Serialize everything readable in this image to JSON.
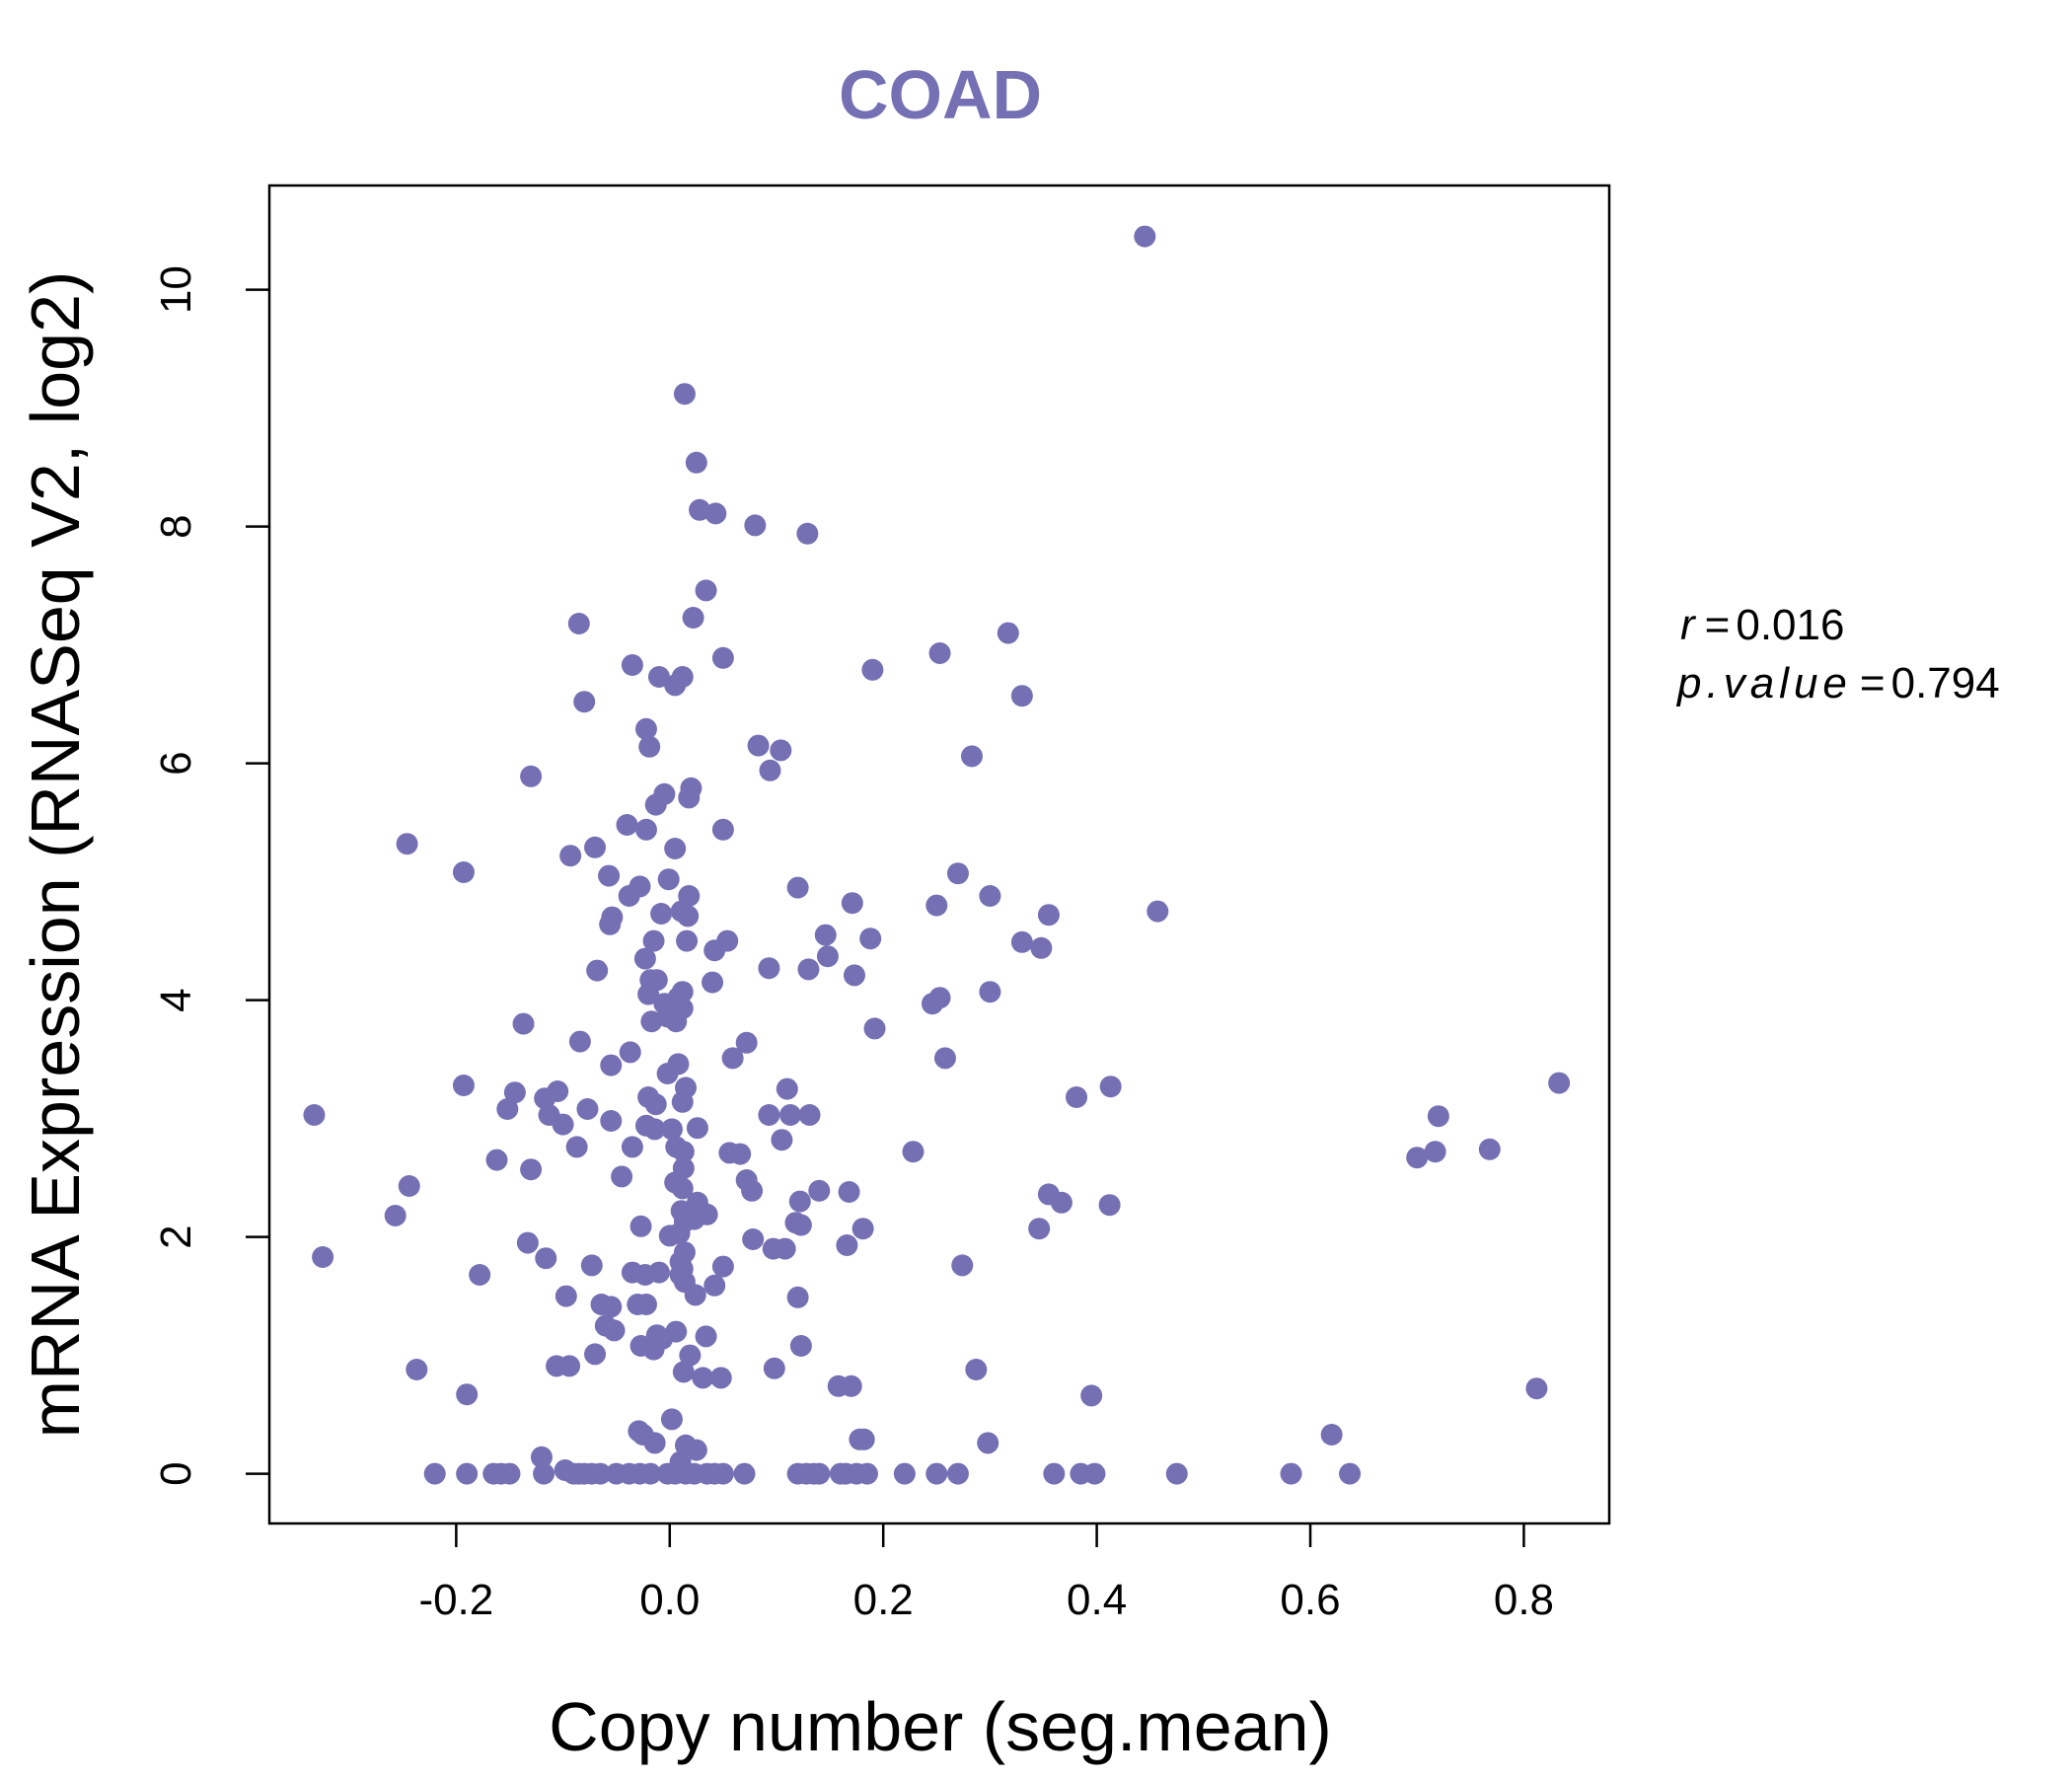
{
  "colors": {
    "accent": "#7570B3"
  },
  "chart_data": {
    "type": "scatter",
    "title": "COAD",
    "xlabel": "Copy number (seg.mean)",
    "ylabel": "mRNA Expression (RNASeq V2, log2)",
    "xlim": [
      -0.375,
      0.88
    ],
    "ylim": [
      -0.42,
      10.88
    ],
    "xticks": [
      "-0.2",
      "0.0",
      "0.2",
      "0.4",
      "0.6",
      "0.8"
    ],
    "yticks": [
      "0",
      "2",
      "4",
      "6",
      "8",
      "10"
    ],
    "grid": false,
    "legend": "none",
    "stats": {
      "r_label": "r",
      "r_value": "0.016",
      "p_label": "p.value",
      "p_value": "0.794"
    },
    "points": [
      [
        0.445,
        10.45
      ],
      [
        0.014,
        9.12
      ],
      [
        0.025,
        8.54
      ],
      [
        0.028,
        8.14
      ],
      [
        0.043,
        8.11
      ],
      [
        0.08,
        8.01
      ],
      [
        0.129,
        7.94
      ],
      [
        0.034,
        7.46
      ],
      [
        0.022,
        7.23
      ],
      [
        -0.085,
        7.18
      ],
      [
        0.317,
        7.1
      ],
      [
        0.253,
        6.93
      ],
      [
        0.05,
        6.89
      ],
      [
        -0.035,
        6.83
      ],
      [
        0.19,
        6.79
      ],
      [
        -0.01,
        6.73
      ],
      [
        0.012,
        6.73
      ],
      [
        0.005,
        6.66
      ],
      [
        -0.08,
        6.52
      ],
      [
        0.33,
        6.57
      ],
      [
        -0.022,
        6.29
      ],
      [
        0.083,
        6.15
      ],
      [
        0.104,
        6.11
      ],
      [
        -0.019,
        6.14
      ],
      [
        0.283,
        6.06
      ],
      [
        0.094,
        5.94
      ],
      [
        -0.13,
        5.89
      ],
      [
        0.02,
        5.79
      ],
      [
        -0.005,
        5.74
      ],
      [
        0.018,
        5.71
      ],
      [
        -0.013,
        5.65
      ],
      [
        -0.04,
        5.48
      ],
      [
        -0.022,
        5.44
      ],
      [
        0.05,
        5.44
      ],
      [
        -0.246,
        5.32
      ],
      [
        -0.07,
        5.29
      ],
      [
        0.005,
        5.28
      ],
      [
        -0.093,
        5.22
      ],
      [
        -0.193,
        5.08
      ],
      [
        -0.057,
        5.05
      ],
      [
        -0.001,
        5.02
      ],
      [
        0.12,
        4.95
      ],
      [
        0.018,
        4.88
      ],
      [
        -0.028,
        4.96
      ],
      [
        -0.038,
        4.88
      ],
      [
        0.27,
        5.07
      ],
      [
        0.3,
        4.88
      ],
      [
        0.171,
        4.82
      ],
      [
        0.457,
        4.75
      ],
      [
        -0.008,
        4.73
      ],
      [
        0.011,
        4.75
      ],
      [
        0.017,
        4.71
      ],
      [
        -0.054,
        4.7
      ],
      [
        -0.056,
        4.64
      ],
      [
        0.25,
        4.8
      ],
      [
        0.355,
        4.72
      ],
      [
        0.146,
        4.55
      ],
      [
        0.188,
        4.52
      ],
      [
        -0.015,
        4.5
      ],
      [
        0.016,
        4.5
      ],
      [
        0.054,
        4.5
      ],
      [
        0.042,
        4.42
      ],
      [
        0.33,
        4.49
      ],
      [
        0.348,
        4.44
      ],
      [
        0.148,
        4.37
      ],
      [
        -0.023,
        4.35
      ],
      [
        -0.068,
        4.25
      ],
      [
        0.093,
        4.27
      ],
      [
        0.13,
        4.26
      ],
      [
        0.173,
        4.21
      ],
      [
        -0.018,
        4.17
      ],
      [
        -0.012,
        4.17
      ],
      [
        0.04,
        4.15
      ],
      [
        -0.02,
        4.05
      ],
      [
        0.012,
        4.07
      ],
      [
        0.008,
        4.02
      ],
      [
        -0.005,
        3.97
      ],
      [
        0.246,
        3.97
      ],
      [
        0.253,
        4.02
      ],
      [
        0.3,
        4.07
      ],
      [
        0.012,
        3.93
      ],
      [
        -0.002,
        3.86
      ],
      [
        0.006,
        3.82
      ],
      [
        -0.017,
        3.82
      ],
      [
        -0.137,
        3.8
      ],
      [
        0.192,
        3.76
      ],
      [
        -0.084,
        3.65
      ],
      [
        0.072,
        3.64
      ],
      [
        -0.037,
        3.56
      ],
      [
        0.059,
        3.51
      ],
      [
        0.258,
        3.51
      ],
      [
        0.008,
        3.46
      ],
      [
        -0.055,
        3.45
      ],
      [
        -0.002,
        3.38
      ],
      [
        -0.193,
        3.28
      ],
      [
        0.413,
        3.27
      ],
      [
        0.833,
        3.3
      ],
      [
        0.11,
        3.25
      ],
      [
        -0.145,
        3.22
      ],
      [
        -0.105,
        3.23
      ],
      [
        0.015,
        3.26
      ],
      [
        -0.02,
        3.18
      ],
      [
        0.381,
        3.18
      ],
      [
        -0.117,
        3.17
      ],
      [
        -0.013,
        3.12
      ],
      [
        0.012,
        3.14
      ],
      [
        -0.152,
        3.08
      ],
      [
        -0.077,
        3.08
      ],
      [
        -0.113,
        3.03
      ],
      [
        0.093,
        3.03
      ],
      [
        0.113,
        3.03
      ],
      [
        0.131,
        3.03
      ],
      [
        0.72,
        3.02
      ],
      [
        -0.333,
        3.03
      ],
      [
        -0.1,
        2.95
      ],
      [
        -0.055,
        2.98
      ],
      [
        -0.022,
        2.94
      ],
      [
        -0.014,
        2.91
      ],
      [
        0.002,
        2.91
      ],
      [
        0.026,
        2.92
      ],
      [
        0.105,
        2.82
      ],
      [
        -0.087,
        2.76
      ],
      [
        -0.035,
        2.76
      ],
      [
        0.006,
        2.76
      ],
      [
        0.013,
        2.72
      ],
      [
        0.056,
        2.71
      ],
      [
        0.066,
        2.7
      ],
      [
        0.228,
        2.72
      ],
      [
        0.717,
        2.72
      ],
      [
        0.768,
        2.74
      ],
      [
        0.7,
        2.67
      ],
      [
        -0.162,
        2.65
      ],
      [
        -0.13,
        2.57
      ],
      [
        0.013,
        2.58
      ],
      [
        -0.045,
        2.51
      ],
      [
        0.005,
        2.46
      ],
      [
        0.072,
        2.48
      ],
      [
        0.077,
        2.39
      ],
      [
        0.012,
        2.41
      ],
      [
        -0.244,
        2.43
      ],
      [
        0.14,
        2.39
      ],
      [
        0.168,
        2.38
      ],
      [
        0.355,
        2.36
      ],
      [
        0.122,
        2.3
      ],
      [
        0.367,
        2.29
      ],
      [
        0.026,
        2.29
      ],
      [
        0.011,
        2.22
      ],
      [
        0.035,
        2.19
      ],
      [
        0.412,
        2.27
      ],
      [
        -0.257,
        2.18
      ],
      [
        0.023,
        2.15
      ],
      [
        0.014,
        2.13
      ],
      [
        0.118,
        2.12
      ],
      [
        0.123,
        2.1
      ],
      [
        -0.027,
        2.09
      ],
      [
        0.181,
        2.07
      ],
      [
        0.346,
        2.07
      ],
      [
        0.0,
        2.01
      ],
      [
        0.009,
        2.03
      ],
      [
        0.078,
        1.98
      ],
      [
        0.097,
        1.9
      ],
      [
        0.108,
        1.9
      ],
      [
        0.166,
        1.93
      ],
      [
        -0.133,
        1.95
      ],
      [
        -0.116,
        1.82
      ],
      [
        -0.325,
        1.83
      ],
      [
        0.014,
        1.87
      ],
      [
        0.01,
        1.79
      ],
      [
        0.012,
        1.73
      ],
      [
        0.05,
        1.75
      ],
      [
        -0.073,
        1.76
      ],
      [
        0.274,
        1.76
      ],
      [
        -0.035,
        1.7
      ],
      [
        -0.01,
        1.7
      ],
      [
        0.01,
        1.68
      ],
      [
        -0.023,
        1.68
      ],
      [
        -0.178,
        1.68
      ],
      [
        0.014,
        1.62
      ],
      [
        0.042,
        1.59
      ],
      [
        -0.097,
        1.5
      ],
      [
        0.024,
        1.51
      ],
      [
        0.12,
        1.49
      ],
      [
        -0.064,
        1.43
      ],
      [
        -0.055,
        1.41
      ],
      [
        -0.03,
        1.43
      ],
      [
        -0.022,
        1.43
      ],
      [
        -0.06,
        1.25
      ],
      [
        -0.052,
        1.21
      ],
      [
        -0.012,
        1.17
      ],
      [
        0.006,
        1.2
      ],
      [
        -0.007,
        1.14
      ],
      [
        0.034,
        1.16
      ],
      [
        -0.027,
        1.08
      ],
      [
        -0.015,
        1.05
      ],
      [
        0.123,
        1.08
      ],
      [
        -0.07,
        1.01
      ],
      [
        0.019,
        1.0
      ],
      [
        0.013,
        0.86
      ],
      [
        0.031,
        0.81
      ],
      [
        0.048,
        0.81
      ],
      [
        -0.094,
        0.91
      ],
      [
        -0.106,
        0.91
      ],
      [
        0.098,
        0.89
      ],
      [
        0.287,
        0.88
      ],
      [
        -0.237,
        0.88
      ],
      [
        0.158,
        0.74
      ],
      [
        0.17,
        0.74
      ],
      [
        0.812,
        0.72
      ],
      [
        -0.19,
        0.67
      ],
      [
        0.395,
        0.66
      ],
      [
        0.002,
        0.46
      ],
      [
        -0.029,
        0.36
      ],
      [
        -0.025,
        0.33
      ],
      [
        -0.014,
        0.26
      ],
      [
        0.178,
        0.29
      ],
      [
        0.182,
        0.29
      ],
      [
        0.298,
        0.26
      ],
      [
        0.62,
        0.33
      ],
      [
        0.015,
        0.24
      ],
      [
        0.025,
        0.2
      ],
      [
        -0.12,
        0.14
      ],
      [
        0.01,
        0.1
      ],
      [
        -0.22,
        0.0
      ],
      [
        -0.19,
        0.0
      ],
      [
        -0.165,
        0.0
      ],
      [
        -0.158,
        0.0
      ],
      [
        -0.15,
        0.0
      ],
      [
        -0.118,
        0.0
      ],
      [
        -0.098,
        0.03
      ],
      [
        -0.09,
        0.0
      ],
      [
        -0.085,
        0.0
      ],
      [
        -0.08,
        0.0
      ],
      [
        -0.073,
        0.0
      ],
      [
        -0.065,
        0.0
      ],
      [
        -0.05,
        0.0
      ],
      [
        -0.038,
        0.0
      ],
      [
        -0.028,
        0.0
      ],
      [
        -0.018,
        0.0
      ],
      [
        -0.002,
        0.0
      ],
      [
        0.005,
        0.0
      ],
      [
        0.015,
        0.0
      ],
      [
        0.023,
        0.0
      ],
      [
        0.035,
        0.0
      ],
      [
        0.042,
        0.0
      ],
      [
        0.05,
        0.0
      ],
      [
        0.07,
        0.0
      ],
      [
        0.12,
        0.0
      ],
      [
        0.128,
        0.0
      ],
      [
        0.135,
        0.0
      ],
      [
        0.14,
        0.0
      ],
      [
        0.16,
        0.0
      ],
      [
        0.165,
        0.0
      ],
      [
        0.175,
        0.0
      ],
      [
        0.185,
        0.0
      ],
      [
        0.22,
        0.0
      ],
      [
        0.25,
        0.0
      ],
      [
        0.27,
        0.0
      ],
      [
        0.36,
        0.0
      ],
      [
        0.385,
        0.0
      ],
      [
        0.398,
        0.0
      ],
      [
        0.475,
        0.0
      ],
      [
        0.582,
        0.0
      ],
      [
        0.637,
        0.0
      ]
    ]
  }
}
